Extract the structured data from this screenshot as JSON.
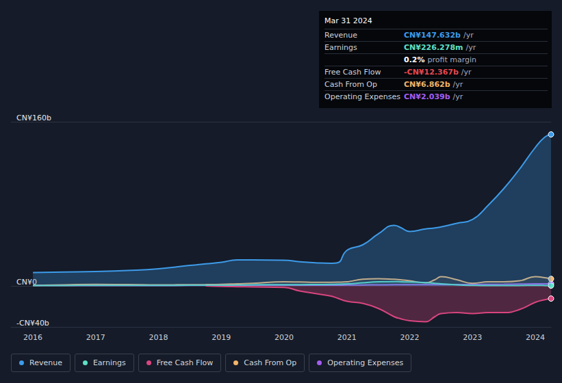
{
  "chart_data": {
    "type": "line",
    "x": [
      2016,
      2016.5,
      2017,
      2017.5,
      2018,
      2018.5,
      2018.75,
      2019,
      2019.25,
      2019.5,
      2020,
      2020.25,
      2020.5,
      2020.75,
      2020.85,
      2021,
      2021.25,
      2021.5,
      2021.75,
      2021.85,
      2022,
      2022.25,
      2022.4,
      2022.5,
      2022.75,
      2023,
      2023.25,
      2023.5,
      2023.75,
      2024,
      2024.15,
      2024.25
    ],
    "xlim": [
      2015.65,
      2024.25
    ],
    "xticks": [
      2016,
      2017,
      2018,
      2019,
      2020,
      2021,
      2022,
      2023,
      2024
    ],
    "ylim": [
      -40,
      160
    ],
    "yticks": [
      {
        "value": -40,
        "label": "-CN¥40b"
      },
      {
        "value": 0,
        "label": "CN¥0"
      },
      {
        "value": 160,
        "label": "CN¥160b"
      }
    ],
    "grid": true,
    "legend": "bottom",
    "series": [
      {
        "name": "Revenue",
        "color": "#3d9be9",
        "values": [
          13,
          13.5,
          14,
          15,
          16.7,
          20,
          21.5,
          23,
          25.3,
          25.3,
          25,
          23.5,
          22.5,
          22,
          22.5,
          34.7,
          40,
          50.7,
          59,
          57,
          53,
          55.5,
          56.5,
          57.5,
          61,
          64.7,
          78.7,
          95,
          114,
          135,
          145,
          147.632
        ]
      },
      {
        "name": "Earnings",
        "color": "#5fe0c4",
        "values": [
          0.3,
          0.4,
          0.5,
          0.5,
          0.5,
          0.6,
          0.6,
          0.7,
          0.8,
          1,
          1.2,
          1.2,
          1.3,
          1.5,
          1.6,
          2,
          3,
          4,
          4.2,
          4,
          3.8,
          3.2,
          2.5,
          2,
          1,
          0.5,
          0.3,
          0.3,
          0.4,
          0.5,
          0.4,
          0.226
        ]
      },
      {
        "name": "Free Cash Flow",
        "color": "#d9457f",
        "values": [
          null,
          null,
          null,
          null,
          null,
          null,
          0,
          -0.5,
          -0.8,
          -1,
          -1.5,
          -5,
          -7.5,
          -10,
          -12,
          -15,
          -17,
          -22,
          -30,
          -32,
          -34,
          -35,
          -30,
          -27,
          -26,
          -27,
          -26,
          -26,
          -23,
          -16,
          -13.5,
          -12.367
        ]
      },
      {
        "name": "Cash From Op",
        "color": "#f2b46a",
        "values": [
          0.5,
          1,
          1.5,
          1.3,
          1,
          1.2,
          1.3,
          1.5,
          2,
          2.5,
          4,
          3.8,
          3.5,
          3.5,
          3.6,
          4,
          6.5,
          7,
          6.5,
          6,
          5,
          3,
          6,
          9,
          6,
          2.5,
          4,
          4,
          5,
          9,
          8,
          6.862
        ]
      },
      {
        "name": "Operating Expenses",
        "color": "#a35df0",
        "values": [
          0.3,
          0.3,
          0.35,
          0.4,
          0.4,
          0.45,
          0.5,
          0.5,
          0.55,
          0.6,
          0.6,
          0.6,
          0.65,
          0.7,
          0.7,
          0.8,
          0.9,
          1,
          1.1,
          1.1,
          1.1,
          1.2,
          1.2,
          1.2,
          1.3,
          1.4,
          1.5,
          1.6,
          1.8,
          2,
          2,
          2.039
        ]
      }
    ],
    "annotation": {
      "title": "Mar 31 2024",
      "rows": [
        {
          "label": "Revenue",
          "value": "CN¥147.632b",
          "unit": "/yr",
          "color": "#3d9be9"
        },
        {
          "label": "Earnings",
          "value": "CN¥226.278m",
          "unit": "/yr",
          "color": "#5fe0c4"
        },
        {
          "value": "0.2%",
          "unit": "profit margin",
          "color": "#ffffff"
        },
        {
          "label": "Free Cash Flow",
          "value": "-CN¥12.367b",
          "unit": "/yr",
          "color": "#e8474f"
        },
        {
          "label": "Cash From Op",
          "value": "CN¥6.862b",
          "unit": "/yr",
          "color": "#f2b46a"
        },
        {
          "label": "Operating Expenses",
          "value": "CN¥2.039b",
          "unit": "/yr",
          "color": "#a35df0"
        }
      ]
    }
  }
}
